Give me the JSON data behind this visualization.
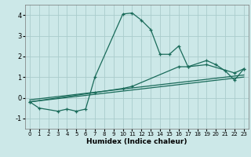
{
  "title": "",
  "xlabel": "Humidex (Indice chaleur)",
  "bg_color": "#cce8e8",
  "grid_color": "#aacccc",
  "line_color": "#1a6b5a",
  "xlim": [
    -0.5,
    23.5
  ],
  "ylim": [
    -1.5,
    4.5
  ],
  "xticks": [
    0,
    1,
    2,
    3,
    4,
    5,
    6,
    7,
    8,
    9,
    10,
    11,
    12,
    13,
    14,
    15,
    16,
    17,
    18,
    19,
    20,
    21,
    22,
    23
  ],
  "yticks": [
    -1,
    0,
    1,
    2,
    3,
    4
  ],
  "main_x": [
    0,
    1,
    3,
    4,
    5,
    6,
    7,
    10,
    11,
    12,
    13,
    14,
    15,
    16,
    17,
    19,
    20,
    21,
    22,
    23
  ],
  "main_y": [
    -0.2,
    -0.5,
    -0.65,
    -0.55,
    -0.65,
    -0.55,
    1.0,
    4.05,
    4.1,
    3.75,
    3.3,
    2.1,
    2.1,
    2.5,
    1.5,
    1.8,
    1.6,
    1.3,
    0.85,
    1.4
  ],
  "line2_x": [
    0,
    7,
    10,
    11,
    16,
    17,
    19,
    22,
    23
  ],
  "line2_y": [
    -0.2,
    0.25,
    0.45,
    0.55,
    1.5,
    1.5,
    1.6,
    1.2,
    1.4
  ],
  "line3_x": [
    0,
    23
  ],
  "line3_y": [
    -0.2,
    1.0
  ],
  "line4_x": [
    0,
    23
  ],
  "line4_y": [
    -0.1,
    1.1
  ]
}
